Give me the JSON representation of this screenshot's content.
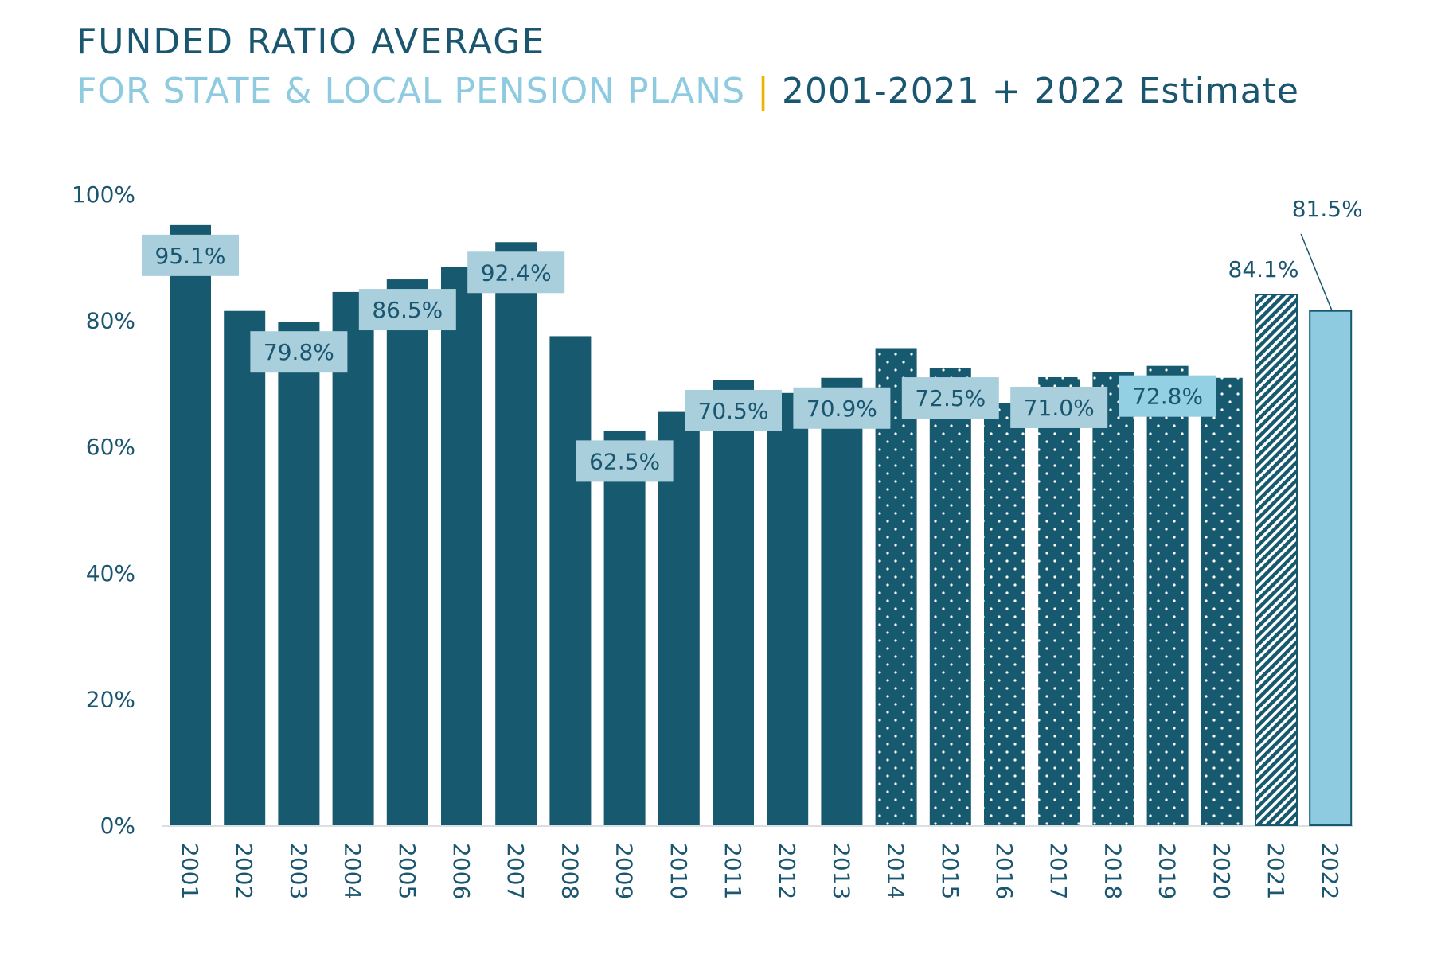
{
  "title_line1": "FUNDED RATIO AVERAGE",
  "title_line2_a": "FOR STATE & LOCAL PENSION PLANS",
  "title_sep": "|",
  "title_line2_b": "2001-2021 + 2022 Estimate",
  "chart_data": {
    "type": "bar",
    "title": "FUNDED RATIO AVERAGE FOR STATE & LOCAL PENSION PLANS | 2001-2021 + 2022 Estimate",
    "xlabel": "",
    "ylabel": "",
    "ylim": [
      0,
      100
    ],
    "yticks": [
      "0%",
      "20%",
      "40%",
      "60%",
      "80%",
      "100%"
    ],
    "grid": false,
    "categories": [
      "2001",
      "2002",
      "2003",
      "2004",
      "2005",
      "2006",
      "2007",
      "2008",
      "2009",
      "2010",
      "2011",
      "2012",
      "2013",
      "2014",
      "2015",
      "2016",
      "2017",
      "2018",
      "2019",
      "2020",
      "2021",
      "2022"
    ],
    "values": [
      95.1,
      81.5,
      79.8,
      84.5,
      86.5,
      88.5,
      92.4,
      77.5,
      62.5,
      65.5,
      70.5,
      68.5,
      70.9,
      75.6,
      72.5,
      66.9,
      71.0,
      71.8,
      72.8,
      70.9,
      84.1,
      81.5
    ],
    "patterns": [
      "solid",
      "solid",
      "solid",
      "solid",
      "solid",
      "solid",
      "solid",
      "solid",
      "solid",
      "solid",
      "solid",
      "solid",
      "solid",
      "dots",
      "dots",
      "dots",
      "dots",
      "dots",
      "dots",
      "dots",
      "hatch",
      "light"
    ],
    "labels": [
      {
        "index": 0,
        "text": "95.1%",
        "style": "box"
      },
      {
        "index": 2,
        "text": "79.8%",
        "style": "box"
      },
      {
        "index": 4,
        "text": "86.5%",
        "style": "box"
      },
      {
        "index": 6,
        "text": "92.4%",
        "style": "box"
      },
      {
        "index": 8,
        "text": "62.5%",
        "style": "box"
      },
      {
        "index": 10,
        "text": "70.5%",
        "style": "box"
      },
      {
        "index": 12,
        "text": "70.9%",
        "style": "box"
      },
      {
        "index": 14,
        "text": "72.5%",
        "style": "box"
      },
      {
        "index": 16,
        "text": "71.0%",
        "style": "box"
      },
      {
        "index": 18,
        "text": "72.8%",
        "style": "boxlight"
      },
      {
        "index": 20,
        "text": "84.1%",
        "style": "plain"
      },
      {
        "index": 21,
        "text": "81.5%",
        "style": "callout"
      }
    ],
    "colors": {
      "bar": "#17596f",
      "estimate": "#8fcbe0",
      "label_box": "#a9cfdd",
      "label_box_light": "#93d0e3",
      "text": "#1a5670"
    }
  }
}
